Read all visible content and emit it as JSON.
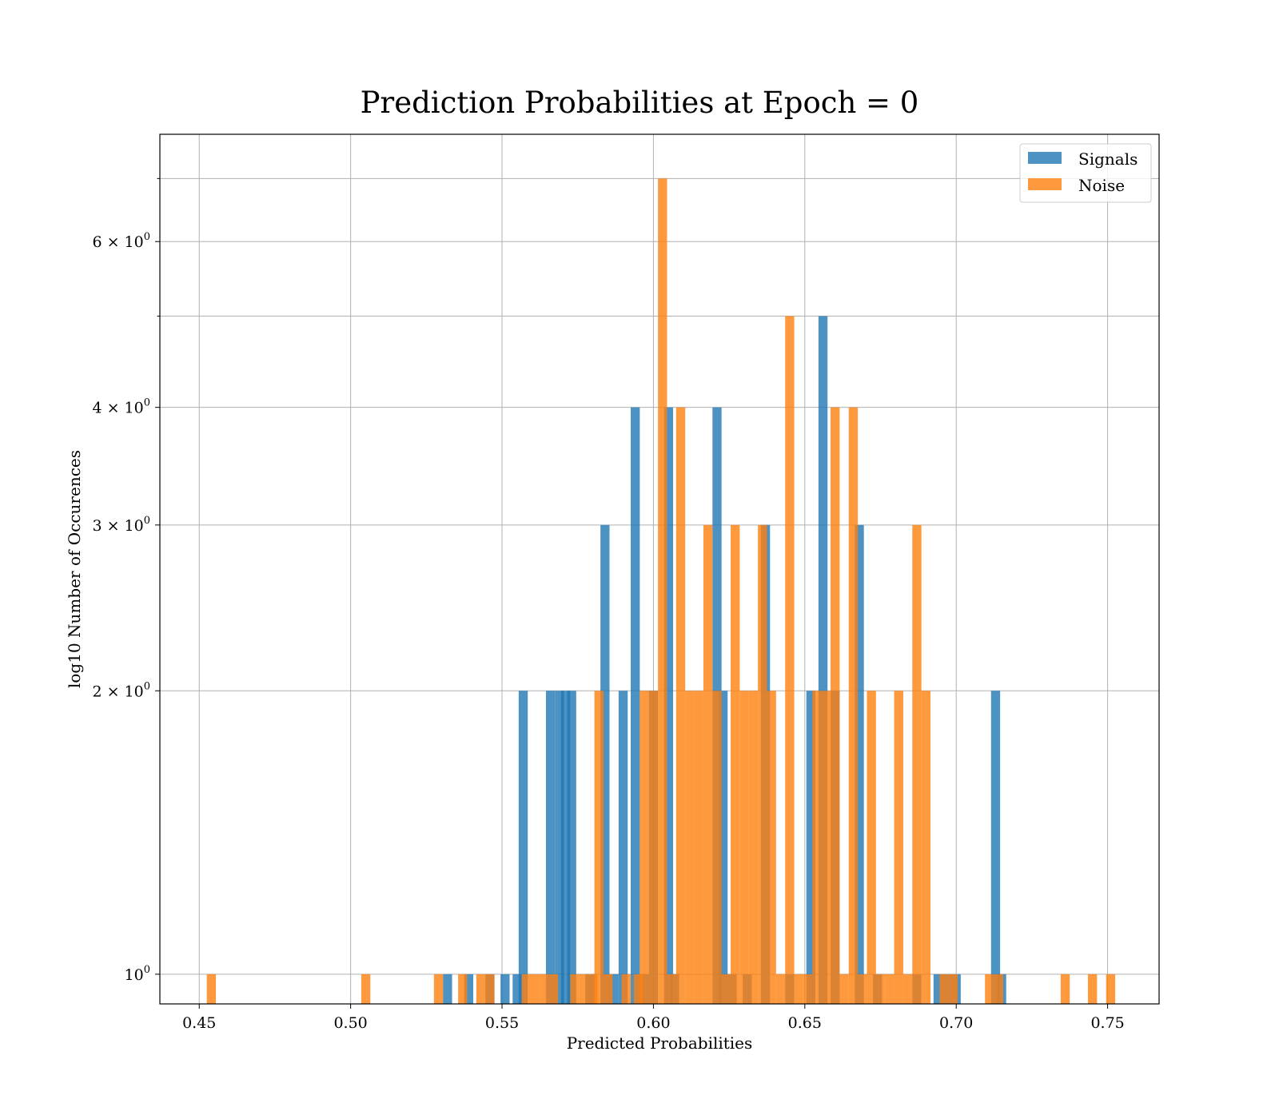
{
  "chart_data": {
    "type": "bar",
    "title": "Prediction Probabilities at Epoch = 0",
    "xlabel": "Predicted Probabilities",
    "ylabel": "log10 Number of Occurences",
    "xlim": [
      0.437,
      0.767
    ],
    "ylim": [
      0.93,
      7.8
    ],
    "yscale": "log",
    "grid": true,
    "legend_position": "top-right",
    "bin_width": 0.003,
    "x_ticks": [
      {
        "value": 0.45,
        "label": "0.45"
      },
      {
        "value": 0.5,
        "label": "0.50"
      },
      {
        "value": 0.55,
        "label": "0.55"
      },
      {
        "value": 0.6,
        "label": "0.60"
      },
      {
        "value": 0.65,
        "label": "0.65"
      },
      {
        "value": 0.7,
        "label": "0.70"
      },
      {
        "value": 0.75,
        "label": "0.75"
      }
    ],
    "y_ticks": [
      {
        "value": 1,
        "base": "10",
        "exp": "0"
      },
      {
        "value": 2,
        "base": "2 × 10",
        "exp": "0"
      },
      {
        "value": 3,
        "base": "3 × 10",
        "exp": "0"
      },
      {
        "value": 4,
        "base": "4 × 10",
        "exp": "0"
      },
      {
        "value": 6,
        "base": "6 × 10",
        "exp": "0"
      }
    ],
    "y_minor_ticks": [
      5,
      7
    ],
    "series": [
      {
        "name": "Signals",
        "color": "#1f77b4",
        "bars": [
          [
            0.532,
            1
          ],
          [
            0.539,
            1
          ],
          [
            0.546,
            1
          ],
          [
            0.551,
            1
          ],
          [
            0.555,
            1
          ],
          [
            0.557,
            2
          ],
          [
            0.566,
            2
          ],
          [
            0.569,
            2
          ],
          [
            0.571,
            2
          ],
          [
            0.573,
            2
          ],
          [
            0.579,
            1
          ],
          [
            0.584,
            3
          ],
          [
            0.587,
            1
          ],
          [
            0.59,
            2
          ],
          [
            0.594,
            4
          ],
          [
            0.597,
            1
          ],
          [
            0.6,
            2
          ],
          [
            0.605,
            4
          ],
          [
            0.607,
            1
          ],
          [
            0.621,
            4
          ],
          [
            0.623,
            2
          ],
          [
            0.626,
            1
          ],
          [
            0.631,
            1
          ],
          [
            0.637,
            3
          ],
          [
            0.645,
            1
          ],
          [
            0.652,
            2
          ],
          [
            0.656,
            5
          ],
          [
            0.66,
            2
          ],
          [
            0.668,
            3
          ],
          [
            0.674,
            1
          ],
          [
            0.687,
            1
          ],
          [
            0.694,
            1
          ],
          [
            0.697,
            1
          ],
          [
            0.7,
            1
          ],
          [
            0.713,
            2
          ],
          [
            0.715,
            1
          ]
        ]
      },
      {
        "name": "Noise",
        "color": "#ff7f0e",
        "bars": [
          [
            0.454,
            1
          ],
          [
            0.505,
            1
          ],
          [
            0.529,
            1
          ],
          [
            0.537,
            1
          ],
          [
            0.543,
            1
          ],
          [
            0.546,
            1
          ],
          [
            0.558,
            1
          ],
          [
            0.561,
            1
          ],
          [
            0.564,
            1
          ],
          [
            0.567,
            1
          ],
          [
            0.574,
            1
          ],
          [
            0.577,
            1
          ],
          [
            0.58,
            1
          ],
          [
            0.582,
            2
          ],
          [
            0.585,
            1
          ],
          [
            0.591,
            1
          ],
          [
            0.595,
            1
          ],
          [
            0.597,
            2
          ],
          [
            0.6,
            2
          ],
          [
            0.603,
            7
          ],
          [
            0.606,
            1
          ],
          [
            0.609,
            4
          ],
          [
            0.612,
            2
          ],
          [
            0.615,
            2
          ],
          [
            0.618,
            3
          ],
          [
            0.621,
            2
          ],
          [
            0.624,
            1
          ],
          [
            0.627,
            3
          ],
          [
            0.63,
            2
          ],
          [
            0.633,
            2
          ],
          [
            0.636,
            3
          ],
          [
            0.639,
            2
          ],
          [
            0.642,
            1
          ],
          [
            0.645,
            5
          ],
          [
            0.648,
            1
          ],
          [
            0.651,
            1
          ],
          [
            0.654,
            2
          ],
          [
            0.657,
            2
          ],
          [
            0.66,
            4
          ],
          [
            0.663,
            1
          ],
          [
            0.666,
            4
          ],
          [
            0.669,
            1
          ],
          [
            0.672,
            2
          ],
          [
            0.675,
            1
          ],
          [
            0.678,
            1
          ],
          [
            0.681,
            2
          ],
          [
            0.684,
            1
          ],
          [
            0.687,
            3
          ],
          [
            0.69,
            2
          ],
          [
            0.696,
            1
          ],
          [
            0.699,
            1
          ],
          [
            0.711,
            1
          ],
          [
            0.714,
            1
          ],
          [
            0.736,
            1
          ],
          [
            0.745,
            1
          ],
          [
            0.751,
            1
          ]
        ]
      }
    ]
  }
}
